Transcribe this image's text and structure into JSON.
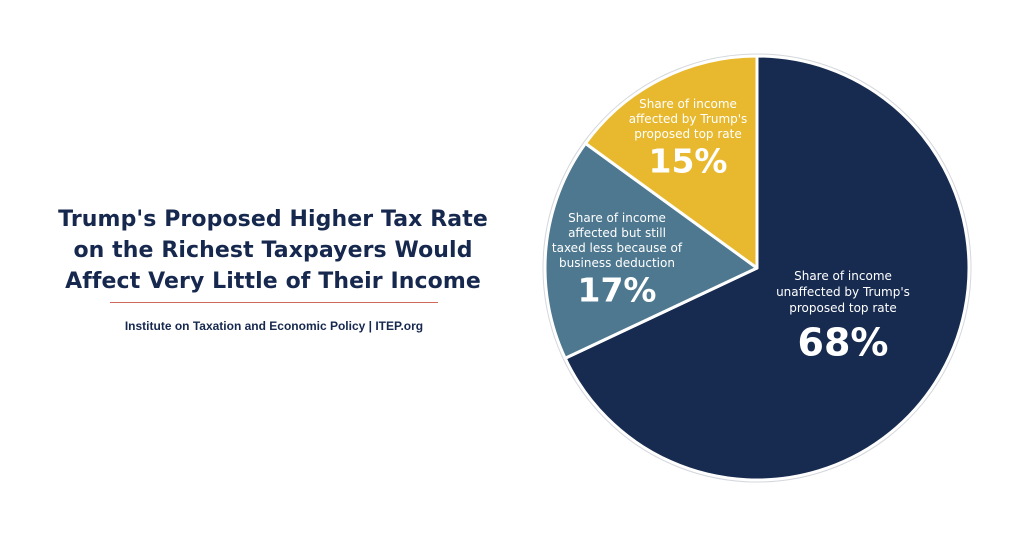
{
  "chart_data": {
    "type": "pie",
    "title": "Trump's Proposed Higher Tax Rate on the Richest Taxpayers Would Affect Very Little of Their Income",
    "title_lines": [
      "Trump's Proposed Higher Tax Rate",
      "on the Richest Taxpayers Would",
      "Affect Very Little of Their Income"
    ],
    "source": "Institute on Taxation and Economic Policy | ITEP.org",
    "slices": [
      {
        "name": "unaffected",
        "label_lines": [
          "Share of income",
          "unaffected by Trump's",
          "proposed top rate"
        ],
        "value": 68,
        "value_label": "68%",
        "color": "#172b50"
      },
      {
        "name": "affected-deduction",
        "label_lines": [
          "Share of income",
          "affected but still",
          "taxed less because of",
          "business deduction"
        ],
        "value": 17,
        "value_label": "17%",
        "color": "#4d7890"
      },
      {
        "name": "affected-top-rate",
        "label_lines": [
          "Share of income",
          "affected by Trump's",
          "proposed top rate"
        ],
        "value": 15,
        "value_label": "15%",
        "color": "#e8b92e"
      }
    ]
  },
  "colors": {
    "title_text": "#16284e",
    "divider": "#cf6a5a",
    "slice_border": "#ffffff",
    "pie_outline": "#d4d7dc"
  }
}
